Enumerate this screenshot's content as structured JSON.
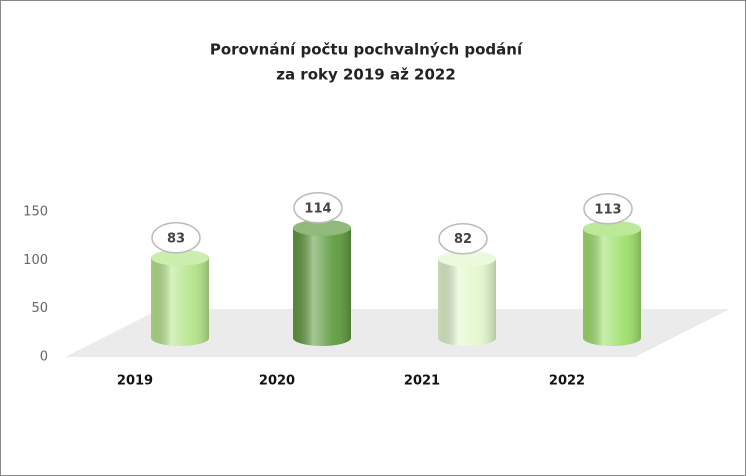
{
  "chart_data": {
    "type": "bar3d",
    "title": [
      "Porovnání počtu pochvalných podání",
      "za roky 2019 až 2022"
    ],
    "categories": [
      "2019",
      "2020",
      "2021",
      "2022"
    ],
    "values": [
      83,
      114,
      82,
      113
    ],
    "colors": [
      "#b5e58a",
      "#5f9c3f",
      "#e3f7cd",
      "#9fe06c"
    ],
    "ylim": [
      0,
      150
    ],
    "yticks": [
      0,
      50,
      100,
      150
    ],
    "grid": false
  }
}
